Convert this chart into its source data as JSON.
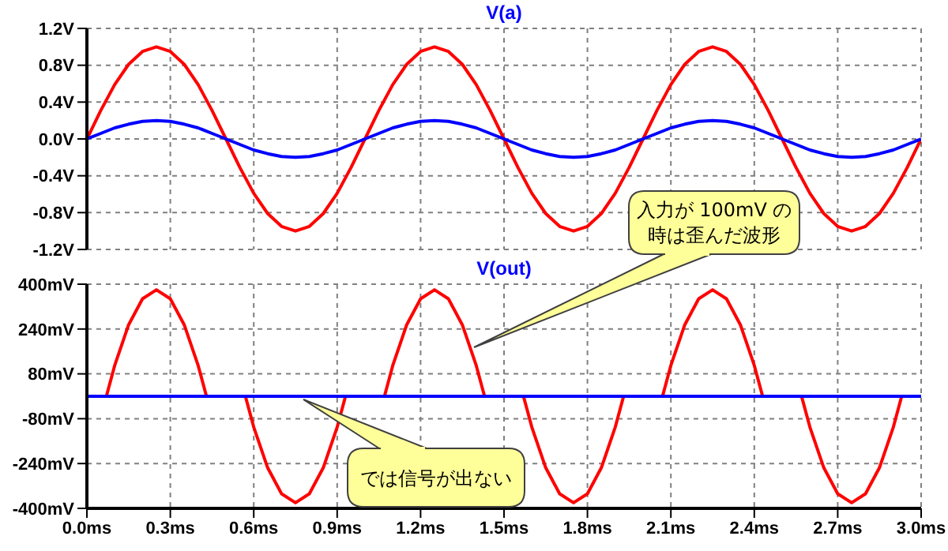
{
  "chart_data": [
    {
      "type": "line",
      "title": "V(a)",
      "x": [
        0,
        0.05,
        0.1,
        0.15,
        0.2,
        0.25,
        0.3,
        0.35,
        0.4,
        0.45,
        0.5,
        0.55,
        0.6,
        0.65,
        0.7,
        0.75,
        0.8,
        0.85,
        0.9,
        0.95,
        1,
        1.05,
        1.1,
        1.15,
        1.2,
        1.25,
        1.3,
        1.35,
        1.4,
        1.45,
        1.5,
        1.55,
        1.6,
        1.65,
        1.7,
        1.75,
        1.8,
        1.85,
        1.9,
        1.95,
        2,
        2.05,
        2.1,
        2.15,
        2.2,
        2.25,
        2.3,
        2.35,
        2.4,
        2.45,
        2.5,
        2.55,
        2.6,
        2.65,
        2.7,
        2.75,
        2.8,
        2.85,
        2.9,
        2.95,
        3
      ],
      "series": [
        {
          "color": "#ff0000",
          "values": [
            0,
            0.31,
            0.59,
            0.81,
            0.95,
            1,
            0.95,
            0.81,
            0.59,
            0.31,
            0,
            -0.31,
            -0.59,
            -0.81,
            -0.95,
            -1,
            -0.95,
            -0.81,
            -0.59,
            -0.31,
            0,
            0.31,
            0.59,
            0.81,
            0.95,
            1,
            0.95,
            0.81,
            0.59,
            0.31,
            0,
            -0.31,
            -0.59,
            -0.81,
            -0.95,
            -1,
            -0.95,
            -0.81,
            -0.59,
            -0.31,
            0,
            0.31,
            0.59,
            0.81,
            0.95,
            1,
            0.95,
            0.81,
            0.59,
            0.31,
            0,
            -0.31,
            -0.59,
            -0.81,
            -0.95,
            -1,
            -0.95,
            -0.81,
            -0.59,
            -0.31,
            0
          ]
        },
        {
          "color": "#0000ff",
          "values": [
            0,
            0.06,
            0.12,
            0.16,
            0.19,
            0.2,
            0.19,
            0.16,
            0.12,
            0.06,
            0,
            -0.06,
            -0.12,
            -0.16,
            -0.19,
            -0.2,
            -0.19,
            -0.16,
            -0.12,
            -0.06,
            0,
            0.06,
            0.12,
            0.16,
            0.19,
            0.2,
            0.19,
            0.16,
            0.12,
            0.06,
            0,
            -0.06,
            -0.12,
            -0.16,
            -0.19,
            -0.2,
            -0.19,
            -0.16,
            -0.12,
            -0.06,
            0,
            0.06,
            0.12,
            0.16,
            0.19,
            0.2,
            0.19,
            0.16,
            0.12,
            0.06,
            0,
            -0.06,
            -0.12,
            -0.16,
            -0.19,
            -0.2,
            -0.19,
            -0.16,
            -0.12,
            -0.06,
            0
          ]
        }
      ],
      "xlim": [
        0,
        3
      ],
      "xticks": [
        0,
        0.3,
        0.6,
        0.9,
        1.2,
        1.5,
        1.8,
        2.1,
        2.4,
        2.7,
        3
      ],
      "ylim": [
        -1.2,
        1.2
      ],
      "yticks": [
        {
          "value": -1.2,
          "label": "-1.2V"
        },
        {
          "value": -0.8,
          "label": "-0.8V"
        },
        {
          "value": -0.4,
          "label": "-0.4V"
        },
        {
          "value": 0,
          "label": "0.0V"
        },
        {
          "value": 0.4,
          "label": "0.4V"
        },
        {
          "value": 0.8,
          "label": "0.8V"
        },
        {
          "value": 1.2,
          "label": "1.2V"
        }
      ],
      "grid": true,
      "tick_labels": "y"
    },
    {
      "type": "line",
      "title": "V(out)",
      "series": [
        {
          "color": "#ff0000",
          "x": [
            0,
            0.05,
            0.07,
            0.1,
            0.15,
            0.2,
            0.25,
            0.3,
            0.35,
            0.4,
            0.43,
            0.45,
            0.5,
            0.55,
            0.57,
            0.6,
            0.65,
            0.7,
            0.75,
            0.8,
            0.85,
            0.9,
            0.93,
            0.95,
            1,
            1.05,
            1.07,
            1.1,
            1.15,
            1.2,
            1.25,
            1.3,
            1.35,
            1.4,
            1.43,
            1.45,
            1.5,
            1.55,
            1.57,
            1.6,
            1.65,
            1.7,
            1.75,
            1.8,
            1.85,
            1.9,
            1.93,
            1.95,
            2,
            2.05,
            2.07,
            2.1,
            2.15,
            2.2,
            2.25,
            2.3,
            2.35,
            2.4,
            2.43,
            2.45,
            2.5,
            2.55,
            2.57,
            2.6,
            2.65,
            2.7,
            2.75,
            2.8,
            2.85,
            2.9,
            2.93,
            2.95,
            3
          ],
          "values": [
            0,
            0,
            0,
            110,
            255,
            348,
            380,
            348,
            255,
            110,
            0,
            0,
            0,
            0,
            0,
            -110,
            -255,
            -348,
            -380,
            -348,
            -255,
            -110,
            0,
            0,
            0,
            0,
            0,
            110,
            255,
            348,
            380,
            348,
            255,
            110,
            0,
            0,
            0,
            0,
            0,
            -110,
            -255,
            -348,
            -380,
            -348,
            -255,
            -110,
            0,
            0,
            0,
            0,
            0,
            110,
            255,
            348,
            380,
            348,
            255,
            110,
            0,
            0,
            0,
            0,
            0,
            -110,
            -255,
            -348,
            -380,
            -348,
            -255,
            -110,
            0,
            0,
            0
          ]
        },
        {
          "color": "#0000ff",
          "x": [
            0,
            3
          ],
          "values": [
            0,
            0
          ]
        }
      ],
      "xlim": [
        0,
        3
      ],
      "xticks": [
        {
          "value": 0,
          "label": "0.0ms"
        },
        {
          "value": 0.3,
          "label": "0.3ms"
        },
        {
          "value": 0.6,
          "label": "0.6ms"
        },
        {
          "value": 0.9,
          "label": "0.9ms"
        },
        {
          "value": 1.2,
          "label": "1.2ms"
        },
        {
          "value": 1.5,
          "label": "1.5ms"
        },
        {
          "value": 1.8,
          "label": "1.8ms"
        },
        {
          "value": 2.1,
          "label": "2.1ms"
        },
        {
          "value": 2.4,
          "label": "2.4ms"
        },
        {
          "value": 2.7,
          "label": "2.7ms"
        },
        {
          "value": 3,
          "label": "3.0ms"
        }
      ],
      "ylim": [
        -400,
        400
      ],
      "yticks": [
        {
          "value": -400,
          "label": "-400mV"
        },
        {
          "value": -240,
          "label": "-240mV"
        },
        {
          "value": -80,
          "label": "-80mV"
        },
        {
          "value": 80,
          "label": "80mV"
        },
        {
          "value": 240,
          "label": "240mV"
        },
        {
          "value": 400,
          "label": "400mV"
        }
      ],
      "grid": true,
      "annotations": [
        "入力が 100mV の時は歪んだ波形",
        "では信号が出ない"
      ]
    }
  ]
}
